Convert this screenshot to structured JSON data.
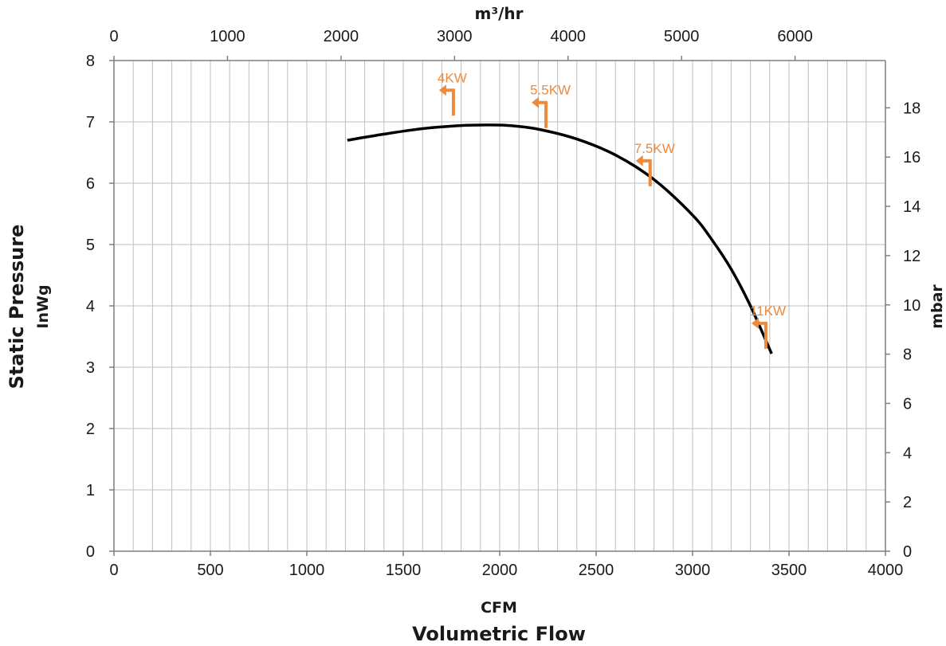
{
  "chart_data": {
    "type": "line",
    "xlabel_top_unit": "m³/hr",
    "xlabel_bottom_unit": "CFM",
    "xlabel_main": "Volumetric Flow",
    "ylabel_main": "Static Pressure",
    "ylabel_unit": "InWg",
    "ylabel_right": "mbar",
    "xlim": [
      0,
      4000
    ],
    "ylim": [
      0,
      8
    ],
    "x2lim": [
      0,
      6796
    ],
    "y2lim": [
      0,
      19.92
    ],
    "x_ticks": [
      "0",
      "500",
      "1000",
      "1500",
      "2000",
      "2500",
      "3000",
      "3500",
      "4000"
    ],
    "y_ticks": [
      "0",
      "1",
      "2",
      "3",
      "4",
      "5",
      "6",
      "7",
      "8"
    ],
    "x2_ticks": [
      "0",
      "1000",
      "2000",
      "3000",
      "4000",
      "5000",
      "6000"
    ],
    "y2_ticks": [
      "0",
      "2",
      "4",
      "6",
      "8",
      "10",
      "12",
      "14",
      "16",
      "18"
    ],
    "grid": true,
    "series": [
      {
        "x": [
          1210,
          1400,
          1600,
          1800,
          1930,
          2050,
          2200,
          2400,
          2600,
          2800,
          3000,
          3100,
          3200,
          3300,
          3410
        ],
        "y": [
          6.7,
          6.8,
          6.89,
          6.94,
          6.95,
          6.94,
          6.88,
          6.72,
          6.46,
          6.06,
          5.48,
          5.08,
          4.6,
          4.0,
          3.22
        ]
      }
    ],
    "annotations": [
      {
        "text": "4KW",
        "x": 1760,
        "y": 7.1,
        "color": "#ee8a3c"
      },
      {
        "text": "5.5KW",
        "x": 2240,
        "y": 6.9,
        "color": "#ee8a3c"
      },
      {
        "text": "7.5KW",
        "x": 2780,
        "y": 5.95,
        "color": "#ee8a3c"
      },
      {
        "text": "11KW",
        "x": 3380,
        "y": 3.3,
        "color": "#ee8a3c"
      }
    ],
    "colors": {
      "line": "#000000",
      "annotation": "#ee8a3c",
      "grid": "#bfbfbf"
    }
  }
}
